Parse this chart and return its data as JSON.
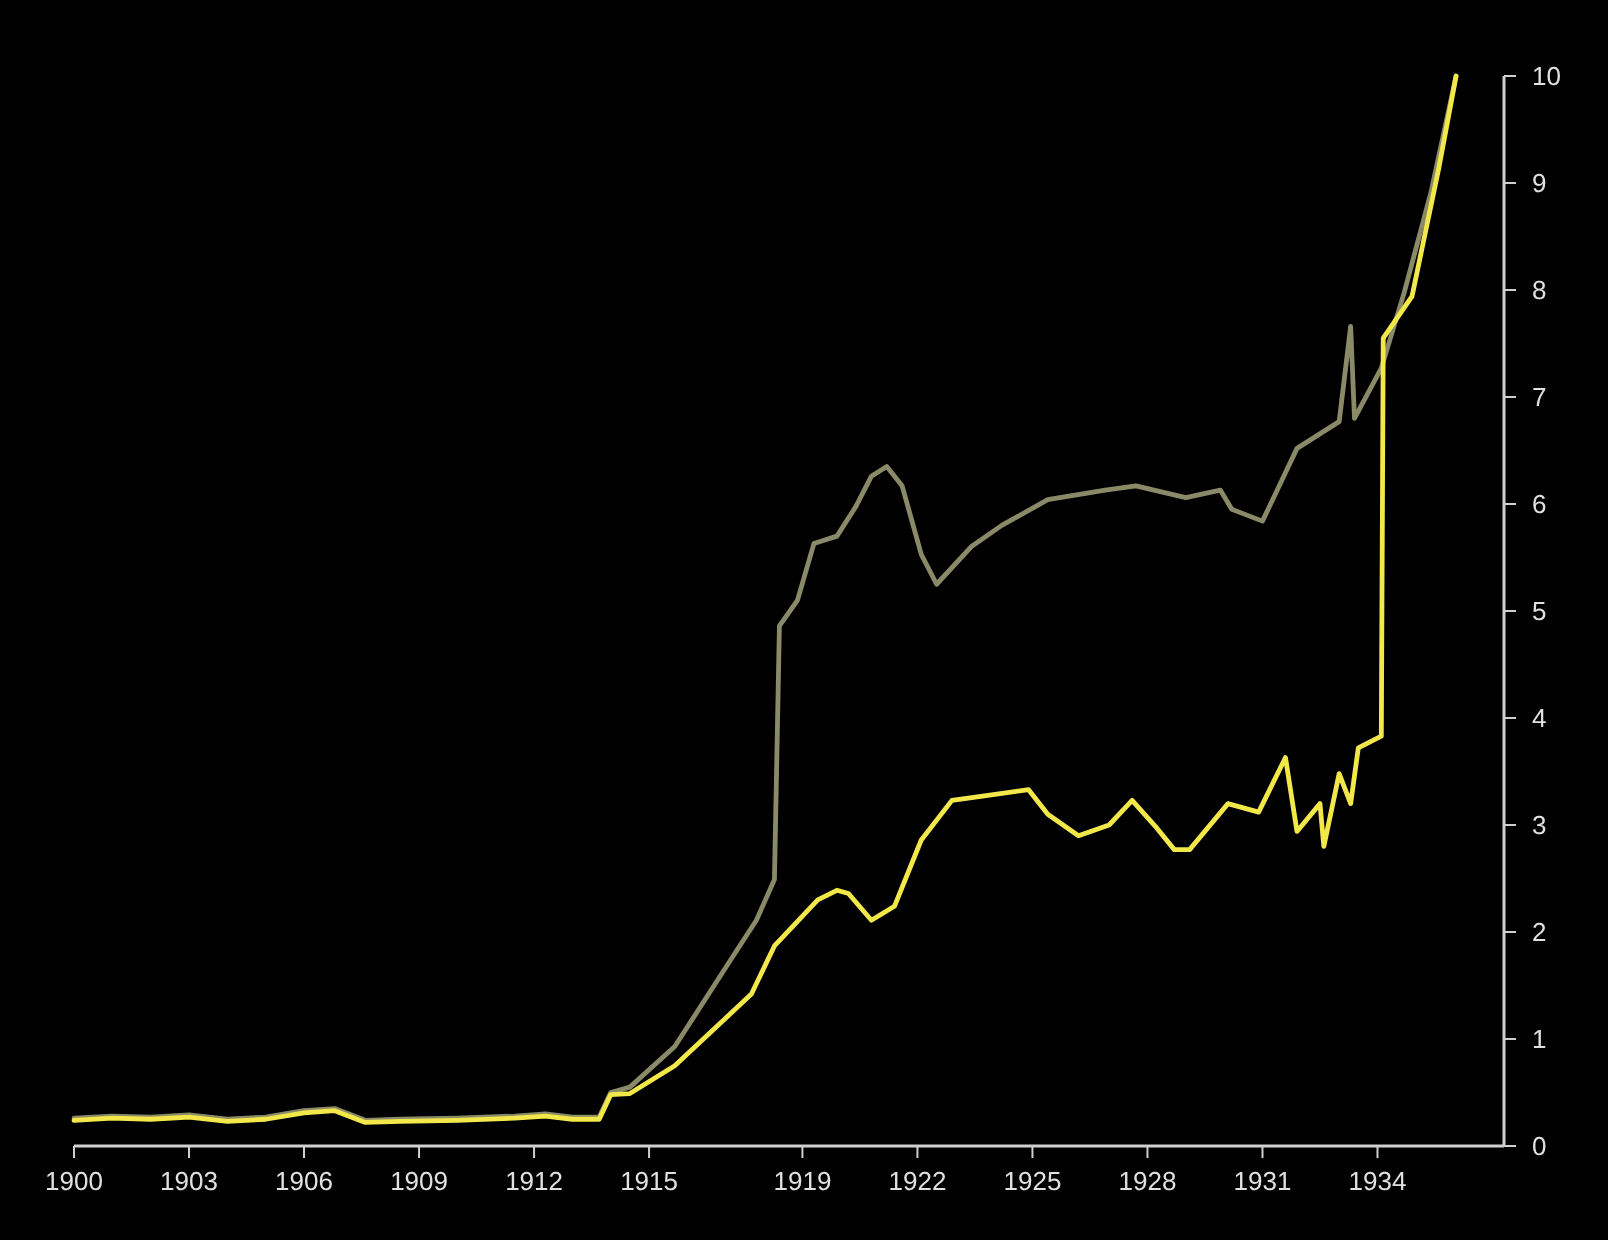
{
  "chart_data": {
    "type": "line",
    "xlim": [
      1900,
      1937.3
    ],
    "ylim": [
      0,
      10
    ],
    "xticks": [
      1900,
      1903,
      1906,
      1909,
      1912,
      1915,
      1919,
      1922,
      1925,
      1928,
      1931,
      1934
    ],
    "yticks": [
      0,
      1,
      2,
      3,
      4,
      5,
      6,
      7,
      8,
      9,
      10
    ],
    "grid": false,
    "series": [
      {
        "color": "#8a8a68",
        "x": [
          1900,
          1901,
          1902,
          1903,
          1904,
          1905,
          1906,
          1906.8,
          1907.6,
          1908.5,
          1910,
          1911.5,
          1912.3,
          1913,
          1913.7,
          1914,
          1914.5,
          1915.67,
          1917.13,
          1917.8,
          1918.27,
          1918.4,
          1918.87,
          1919.3,
          1919.9,
          1920.4,
          1920.8,
          1921.2,
          1921.6,
          1922.1,
          1922.5,
          1923.4,
          1924.2,
          1925.4,
          1926.9,
          1927.7,
          1929,
          1929.9,
          1930.2,
          1931,
          1931.9,
          1933,
          1933.3,
          1933.4,
          1934.1,
          1934.7,
          1935.4,
          1936.05
        ],
        "values": [
          0.26,
          0.28,
          0.27,
          0.29,
          0.25,
          0.27,
          0.33,
          0.35,
          0.24,
          0.25,
          0.26,
          0.28,
          0.3,
          0.27,
          0.27,
          0.5,
          0.55,
          0.93,
          1.74,
          2.11,
          2.49,
          4.86,
          5.1,
          5.63,
          5.7,
          5.98,
          6.26,
          6.35,
          6.17,
          5.53,
          5.25,
          5.6,
          5.8,
          6.04,
          6.13,
          6.17,
          6.06,
          6.13,
          5.95,
          5.84,
          6.52,
          6.77,
          7.66,
          6.8,
          7.27,
          7.98,
          8.92,
          10
        ]
      },
      {
        "color": "#f2e84a",
        "x": [
          1900,
          1901,
          1902,
          1903,
          1904,
          1905,
          1906,
          1906.8,
          1907.6,
          1908.5,
          1910,
          1911.5,
          1912.3,
          1913,
          1913.7,
          1914,
          1914.5,
          1915.67,
          1917.67,
          1918.27,
          1919.4,
          1919.9,
          1920.2,
          1920.8,
          1921.4,
          1922.1,
          1922.9,
          1923.7,
          1924.9,
          1925.4,
          1926.2,
          1927,
          1927.6,
          1928.2,
          1928.7,
          1929.1,
          1930.1,
          1930.9,
          1931.6,
          1931.9,
          1932.5,
          1932.6,
          1933,
          1933.3,
          1933.5,
          1934.1,
          1934.15,
          1934.9,
          1935.6,
          1936.05
        ],
        "values": [
          0.24,
          0.26,
          0.25,
          0.27,
          0.23,
          0.25,
          0.31,
          0.33,
          0.22,
          0.23,
          0.24,
          0.26,
          0.28,
          0.25,
          0.25,
          0.48,
          0.49,
          0.75,
          1.42,
          1.87,
          2.3,
          2.39,
          2.36,
          2.11,
          2.24,
          2.86,
          3.23,
          3.27,
          3.33,
          3.1,
          2.9,
          3,
          3.23,
          2.99,
          2.77,
          2.77,
          3.2,
          3.12,
          3.63,
          2.94,
          3.2,
          2.8,
          3.48,
          3.2,
          3.72,
          3.83,
          7.55,
          7.94,
          9.14,
          10
        ]
      }
    ]
  }
}
